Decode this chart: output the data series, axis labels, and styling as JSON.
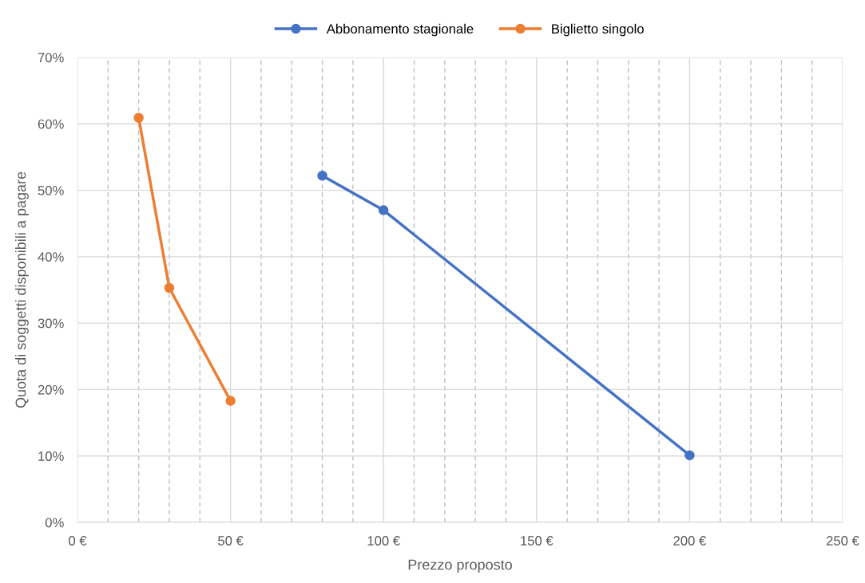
{
  "chart_data": {
    "type": "line",
    "xlabel": "Prezzo proposto",
    "ylabel": "Quota di soggetti disponibili a pagare",
    "series": [
      {
        "name": "Abbonamento stagionale",
        "color": "#4472c4",
        "x": [
          80,
          100,
          200
        ],
        "values": [
          52.2,
          47.0,
          10.1
        ]
      },
      {
        "name": "Biglietto singolo",
        "color": "#ed7d31",
        "x": [
          20,
          30,
          50
        ],
        "values": [
          60.9,
          35.3,
          18.3
        ]
      }
    ],
    "xlim": [
      0,
      250
    ],
    "xticks": [
      {
        "value": 0,
        "label": "0 €"
      },
      {
        "value": 10,
        "label": null
      },
      {
        "value": 20,
        "label": null
      },
      {
        "value": 30,
        "label": null
      },
      {
        "value": 40,
        "label": null
      },
      {
        "value": 50,
        "label": "50 €"
      },
      {
        "value": 60,
        "label": null
      },
      {
        "value": 70,
        "label": null
      },
      {
        "value": 80,
        "label": null
      },
      {
        "value": 90,
        "label": null
      },
      {
        "value": 100,
        "label": "100 €"
      },
      {
        "value": 110,
        "label": null
      },
      {
        "value": 120,
        "label": null
      },
      {
        "value": 130,
        "label": null
      },
      {
        "value": 140,
        "label": null
      },
      {
        "value": 150,
        "label": "150 €"
      },
      {
        "value": 160,
        "label": null
      },
      {
        "value": 170,
        "label": null
      },
      {
        "value": 180,
        "label": null
      },
      {
        "value": 190,
        "label": null
      },
      {
        "value": 200,
        "label": "200 €"
      },
      {
        "value": 210,
        "label": null
      },
      {
        "value": 220,
        "label": null
      },
      {
        "value": 230,
        "label": null
      },
      {
        "value": 240,
        "label": null
      },
      {
        "value": 250,
        "label": "250 €"
      }
    ],
    "ylim": [
      0,
      70
    ],
    "yticks": [
      {
        "value": 0,
        "label": "0%"
      },
      {
        "value": 10,
        "label": "10%"
      },
      {
        "value": 20,
        "label": "20%"
      },
      {
        "value": 30,
        "label": "30%"
      },
      {
        "value": 40,
        "label": "40%"
      },
      {
        "value": 50,
        "label": "50%"
      },
      {
        "value": 60,
        "label": "60%"
      },
      {
        "value": 70,
        "label": "70%"
      }
    ],
    "grid": true,
    "legend": "top",
    "marker": "circle",
    "line_style": "solid"
  }
}
